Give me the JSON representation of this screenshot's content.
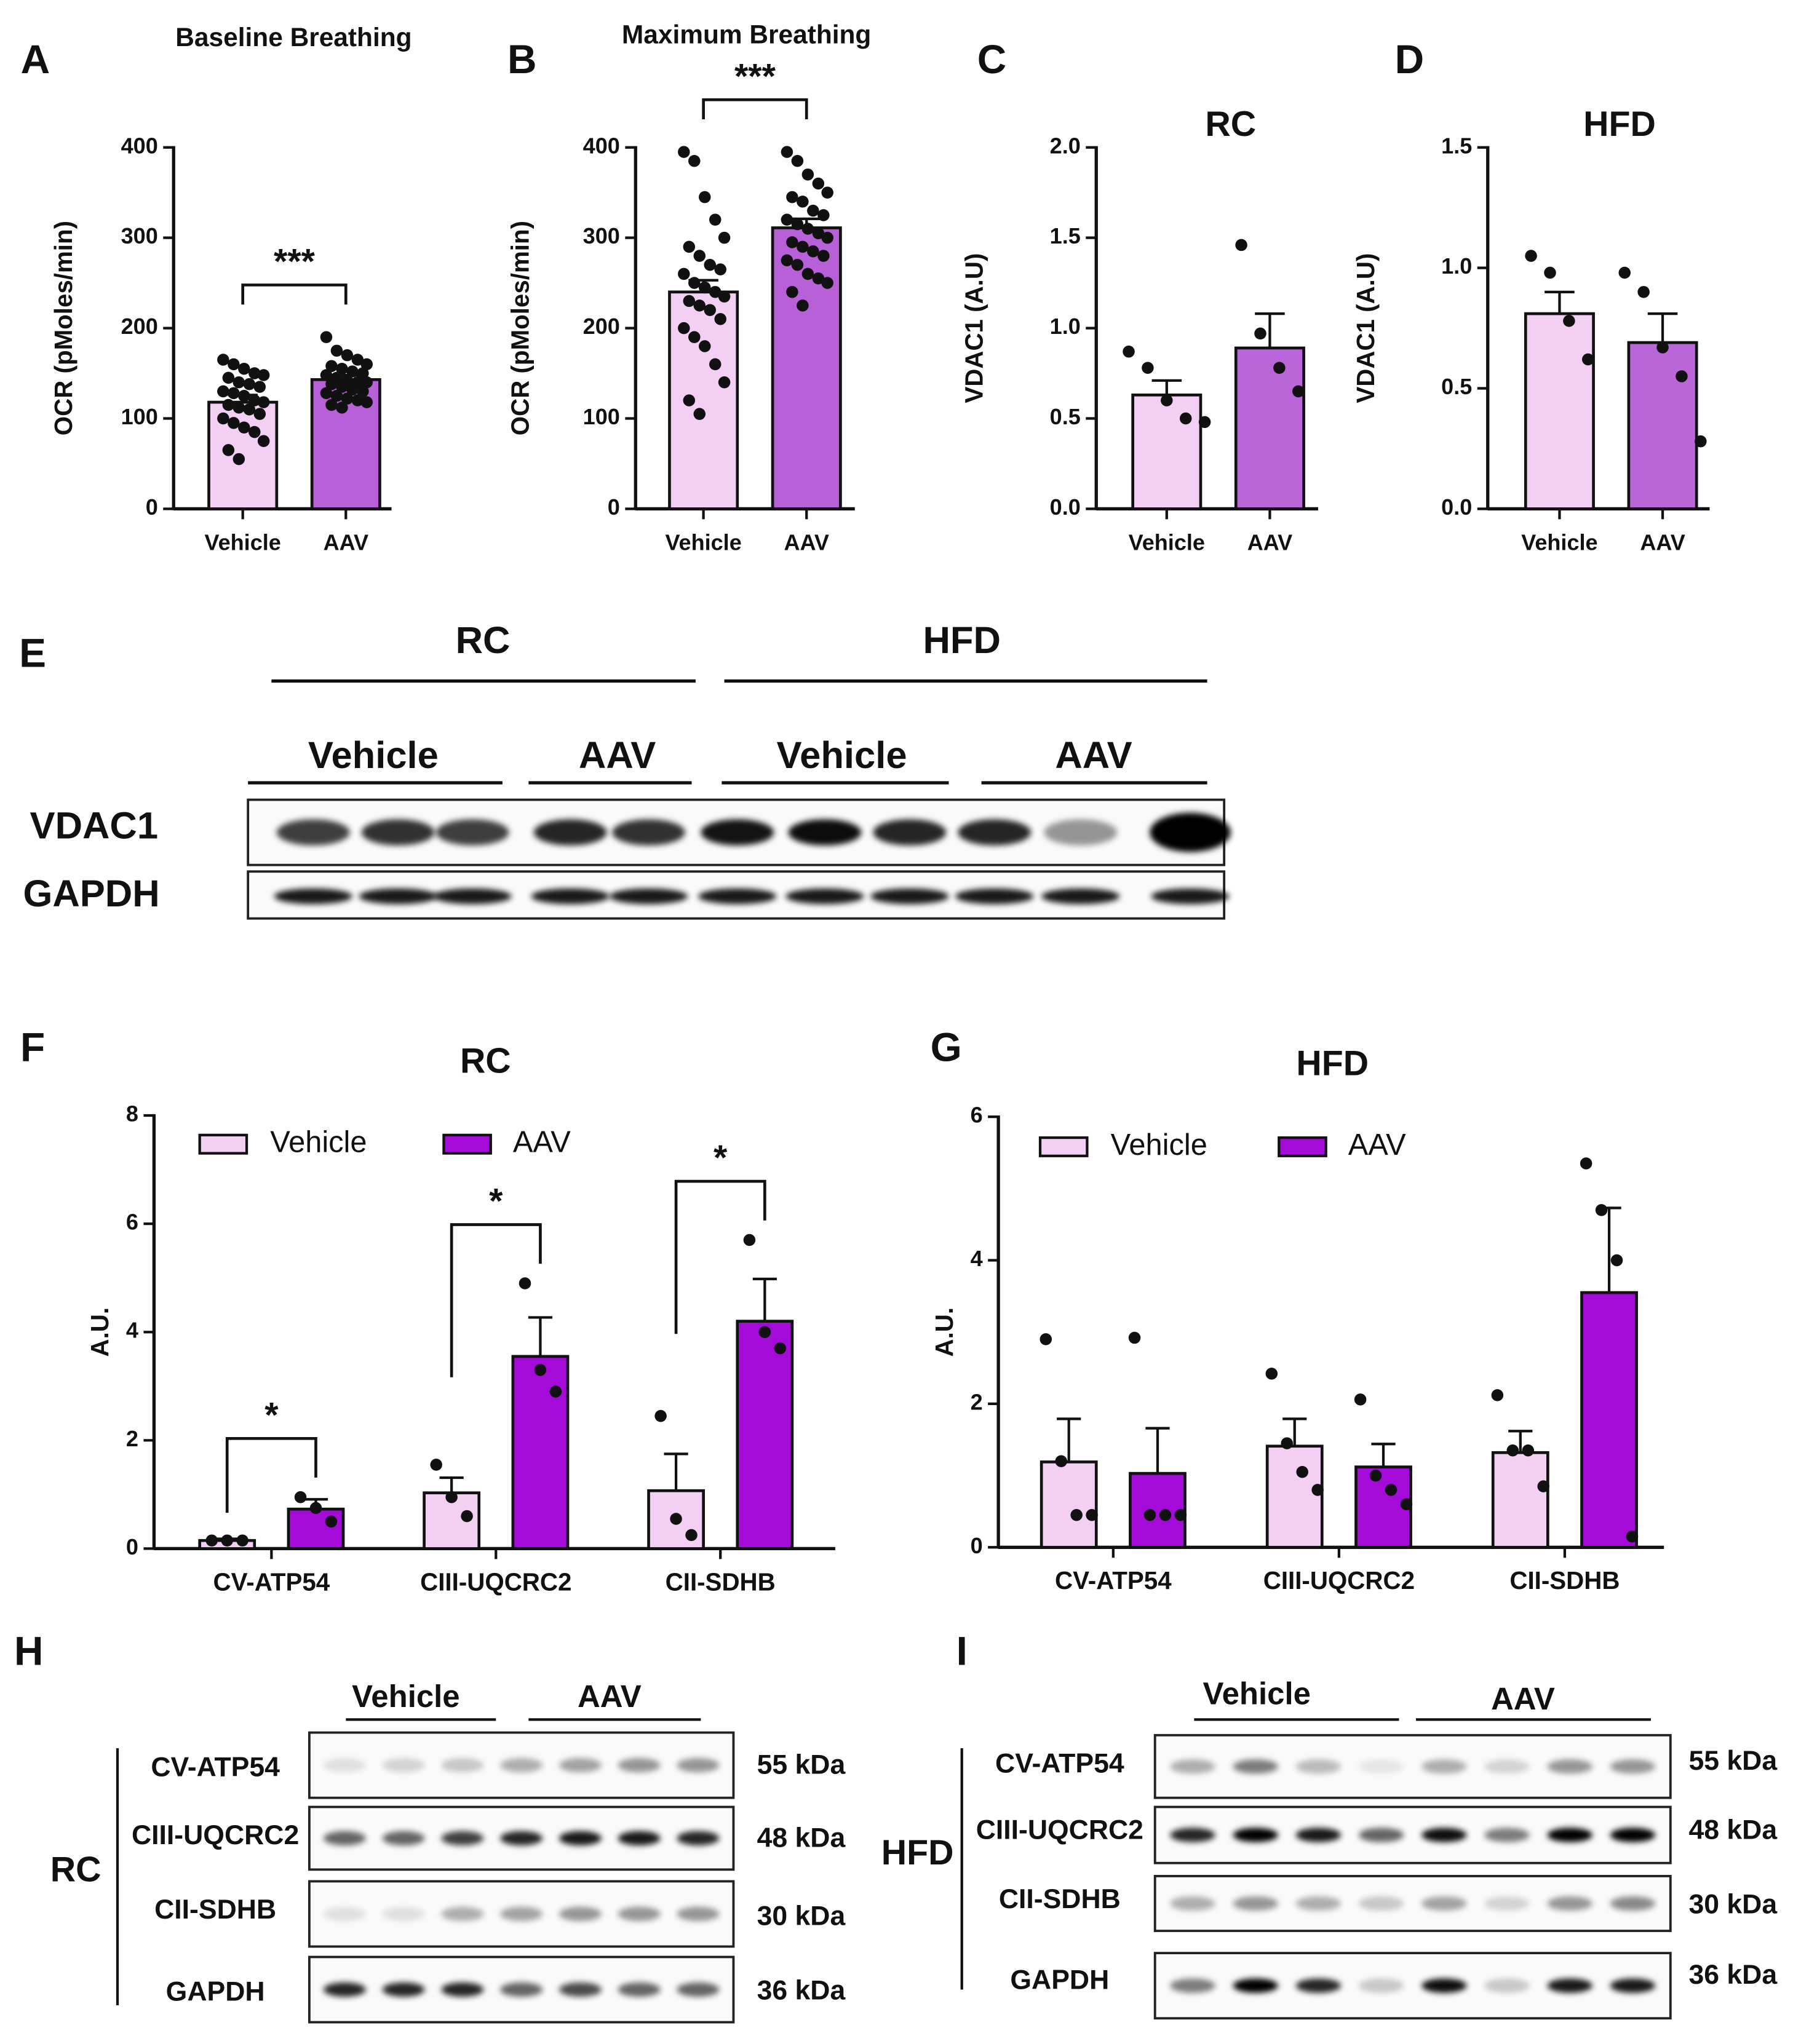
{
  "chart_data": [
    {
      "type": "bar",
      "panel": "A",
      "title": "Baseline Breathing",
      "ylabel": "OCR (pMoles/min)",
      "categories": [
        "Vehicle",
        "AAV"
      ],
      "values": [
        118,
        143
      ],
      "errors": [
        8,
        5
      ],
      "colors": [
        "#f3d0f3",
        "#b860d8"
      ],
      "points": [
        [
          165,
          160,
          155,
          150,
          148,
          145,
          140,
          138,
          135,
          130,
          128,
          125,
          120,
          118,
          115,
          112,
          110,
          105,
          100,
          95,
          90,
          85,
          75,
          65,
          55
        ],
        [
          190,
          175,
          170,
          165,
          160,
          158,
          155,
          152,
          150,
          148,
          145,
          142,
          140,
          140,
          138,
          135,
          132,
          130,
          128,
          125,
          122,
          120,
          118,
          115,
          112
        ]
      ],
      "significance": "***",
      "ylim": [
        0,
        400
      ],
      "yticks": [
        0,
        100,
        200,
        300,
        400
      ]
    },
    {
      "type": "bar",
      "panel": "B",
      "title": "Maximum Breathing",
      "ylabel": "OCR (pMoles/min)",
      "categories": [
        "Vehicle",
        "AAV"
      ],
      "values": [
        240,
        311
      ],
      "errors": [
        13,
        10
      ],
      "colors": [
        "#f3d0f3",
        "#b860d8"
      ],
      "points": [
        [
          395,
          385,
          345,
          320,
          300,
          290,
          280,
          270,
          265,
          260,
          250,
          245,
          240,
          235,
          230,
          225,
          220,
          210,
          200,
          190,
          180,
          160,
          140,
          120,
          105
        ],
        [
          395,
          385,
          370,
          360,
          350,
          345,
          340,
          330,
          325,
          320,
          315,
          310,
          305,
          300,
          295,
          290,
          285,
          280,
          275,
          270,
          260,
          255,
          250,
          240,
          225
        ]
      ],
      "significance": "***",
      "ylim": [
        0,
        400
      ],
      "yticks": [
        0,
        100,
        200,
        300,
        400
      ]
    },
    {
      "type": "bar",
      "panel": "C",
      "title": "RC",
      "ylabel": "VDAC1 (A.U)",
      "categories": [
        "Vehicle",
        "AAV"
      ],
      "values": [
        0.63,
        0.89
      ],
      "errors": [
        0.08,
        0.19
      ],
      "colors": [
        "#f3d0f3",
        "#b866d8"
      ],
      "points": [
        [
          0.87,
          0.78,
          0.6,
          0.5,
          0.48
        ],
        [
          1.46,
          0.97,
          0.78,
          0.65
        ]
      ],
      "ylim": [
        0,
        2
      ],
      "yticks": [
        {
          "value": 0,
          "label": "0.0"
        },
        0.5,
        {
          "value": 1,
          "label": "1.0"
        },
        1.5,
        {
          "value": 2,
          "label": "2.0"
        }
      ]
    },
    {
      "type": "bar",
      "panel": "D",
      "title": "HFD",
      "ylabel": "VDAC1 (A.U)",
      "categories": [
        "Vehicle",
        "AAV"
      ],
      "values": [
        0.81,
        0.69
      ],
      "errors": [
        0.09,
        0.12
      ],
      "colors": [
        "#f3d0f3",
        "#b866d8"
      ],
      "points": [
        [
          1.05,
          0.98,
          0.78,
          0.62
        ],
        [
          0.98,
          0.9,
          0.67,
          0.55,
          0.28
        ]
      ],
      "ylim": [
        0,
        1.5
      ],
      "yticks": [
        {
          "value": 0,
          "label": "0.0"
        },
        0.5,
        {
          "value": 1,
          "label": "1.0"
        },
        1.5
      ]
    },
    {
      "type": "grouped_bar",
      "panel": "F",
      "title": "RC",
      "ylabel": "A.U.",
      "categories": [
        "CV-ATP54",
        "CIII-UQCRC2",
        "CII-SDHB"
      ],
      "series": [
        {
          "name": "Vehicle",
          "color": "#f3d0f3",
          "values": [
            0.15,
            1.03,
            1.07
          ],
          "errors": [
            0.03,
            0.28,
            0.68
          ],
          "points": [
            [
              0.15,
              0.15,
              0.15
            ],
            [
              1.55,
              0.95,
              0.6
            ],
            [
              2.45,
              0.55,
              0.25
            ]
          ]
        },
        {
          "name": "AAV",
          "color": "#a40ad8",
          "values": [
            0.73,
            3.55,
            4.2
          ],
          "errors": [
            0.18,
            0.72,
            0.78
          ],
          "points": [
            [
              0.95,
              0.75,
              0.5
            ],
            [
              4.9,
              3.3,
              2.9
            ],
            [
              5.7,
              4.0,
              3.7
            ]
          ]
        }
      ],
      "significance": [
        "*",
        "*",
        "*"
      ],
      "legend": "top-left",
      "ylim": [
        0,
        8
      ],
      "yticks": [
        0,
        2,
        4,
        6,
        8
      ]
    },
    {
      "type": "grouped_bar",
      "panel": "G",
      "title": "HFD",
      "ylabel": "A.U.",
      "categories": [
        "CV-ATP54",
        "CIII-UQCRC2",
        "CII-SDHB"
      ],
      "series": [
        {
          "name": "Vehicle",
          "color": "#f3d0f3",
          "values": [
            1.19,
            1.41,
            1.32
          ],
          "errors": [
            0.6,
            0.38,
            0.3
          ],
          "points": [
            [
              2.9,
              1.2,
              0.45,
              0.45
            ],
            [
              2.42,
              1.45,
              1.05,
              0.8
            ],
            [
              2.12,
              1.35,
              1.35,
              0.85
            ]
          ]
        },
        {
          "name": "AAV",
          "color": "#a40ad8",
          "values": [
            1.03,
            1.12,
            3.55
          ],
          "errors": [
            0.63,
            0.32,
            1.18
          ],
          "points": [
            [
              2.92,
              0.45,
              0.45,
              0.45
            ],
            [
              2.06,
              1.0,
              0.8,
              0.6
            ],
            [
              5.35,
              4.7,
              4.0,
              0.15
            ]
          ]
        }
      ],
      "legend": "top-left",
      "ylim": [
        0,
        6
      ],
      "yticks": [
        0,
        2,
        4,
        6
      ]
    }
  ],
  "blots": [
    {
      "panel": "E",
      "groups": [
        "RC",
        "HFD"
      ],
      "subgroups": [
        "Vehicle",
        "AAV",
        "Vehicle",
        "AAV"
      ],
      "rows": [
        {
          "name": "VDAC1"
        },
        {
          "name": "GAPDH"
        }
      ]
    },
    {
      "panel": "H",
      "side_label": "RC",
      "subgroups": [
        "Vehicle",
        "AAV"
      ],
      "rows": [
        {
          "name": "CV-ATP54",
          "size": "55 kDa"
        },
        {
          "name": "CIII-UQCRC2",
          "size": "48 kDa"
        },
        {
          "name": "CII-SDHB",
          "size": "30 kDa"
        },
        {
          "name": "GAPDH",
          "size": "36 kDa"
        }
      ]
    },
    {
      "panel": "I",
      "side_label": "HFD",
      "subgroups": [
        "Vehicle",
        "AAV"
      ],
      "rows": [
        {
          "name": "CV-ATP54",
          "size": "55 kDa"
        },
        {
          "name": "CIII-UQCRC2",
          "size": "48 kDa"
        },
        {
          "name": "CII-SDHB",
          "size": "30 kDa"
        },
        {
          "name": "GAPDH",
          "size": "36 kDa"
        }
      ]
    }
  ]
}
